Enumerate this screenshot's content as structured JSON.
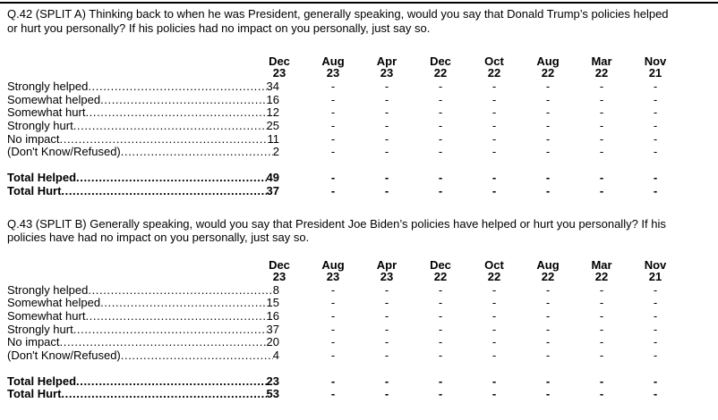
{
  "meta": {
    "background_color": "#ffffff",
    "text_color": "#000000",
    "rule_color": "#000000"
  },
  "questions": [
    {
      "id": "Q.42",
      "text": "Q.42 (SPLIT A) Thinking back to when he was President, generally speaking, would you say that Donald Trump’s policies helped\nor hurt you personally? If his policies had no impact on you personally, just say so.",
      "columns": [
        {
          "month": "Dec",
          "year": "23"
        },
        {
          "month": "Aug",
          "year": "23"
        },
        {
          "month": "Apr",
          "year": "23"
        },
        {
          "month": "Dec",
          "year": "22"
        },
        {
          "month": "Oct",
          "year": "22"
        },
        {
          "month": "Aug",
          "year": "22"
        },
        {
          "month": "Mar",
          "year": "22"
        },
        {
          "month": "Nov",
          "year": "21"
        }
      ],
      "rows": [
        {
          "label": "Strongly helped",
          "values": [
            "34",
            "-",
            "-",
            "-",
            "-",
            "-",
            "-",
            "-"
          ]
        },
        {
          "label": "Somewhat helped",
          "values": [
            "16",
            "-",
            "-",
            "-",
            "-",
            "-",
            "-",
            "-"
          ]
        },
        {
          "label": "Somewhat hurt",
          "values": [
            "12",
            "-",
            "-",
            "-",
            "-",
            "-",
            "-",
            "-"
          ]
        },
        {
          "label": "Strongly hurt",
          "values": [
            "25",
            "-",
            "-",
            "-",
            "-",
            "-",
            "-",
            "-"
          ]
        },
        {
          "label": "No impact",
          "values": [
            "11",
            "-",
            "-",
            "-",
            "-",
            "-",
            "-",
            "-"
          ]
        },
        {
          "label": "(Don't Know/Refused)",
          "values": [
            "2",
            "-",
            "-",
            "-",
            "-",
            "-",
            "-",
            "-"
          ]
        }
      ],
      "totals": [
        {
          "label": "Total Helped",
          "values": [
            "49",
            "-",
            "-",
            "-",
            "-",
            "-",
            "-",
            "-"
          ]
        },
        {
          "label": "Total Hurt",
          "values": [
            "37",
            "-",
            "-",
            "-",
            "-",
            "-",
            "-",
            "-"
          ]
        }
      ]
    },
    {
      "id": "Q.43",
      "text": "Q.43 (SPLIT B) Generally speaking, would you say that President Joe Biden’s policies have helped or hurt you personally? If his\npolicies have had no impact on you personally, just say so.",
      "columns": [
        {
          "month": "Dec",
          "year": "23"
        },
        {
          "month": "Aug",
          "year": "23"
        },
        {
          "month": "Apr",
          "year": "23"
        },
        {
          "month": "Dec",
          "year": "22"
        },
        {
          "month": "Oct",
          "year": "22"
        },
        {
          "month": "Aug",
          "year": "22"
        },
        {
          "month": "Mar",
          "year": "22"
        },
        {
          "month": "Nov",
          "year": "21"
        }
      ],
      "rows": [
        {
          "label": "Strongly helped",
          "values": [
            "8",
            "-",
            "-",
            "-",
            "-",
            "-",
            "-",
            "-"
          ]
        },
        {
          "label": "Somewhat helped",
          "values": [
            "15",
            "-",
            "-",
            "-",
            "-",
            "-",
            "-",
            "-"
          ]
        },
        {
          "label": "Somewhat hurt",
          "values": [
            "16",
            "-",
            "-",
            "-",
            "-",
            "-",
            "-",
            "-"
          ]
        },
        {
          "label": "Strongly hurt",
          "values": [
            "37",
            "-",
            "-",
            "-",
            "-",
            "-",
            "-",
            "-"
          ]
        },
        {
          "label": "No impact",
          "values": [
            "20",
            "-",
            "-",
            "-",
            "-",
            "-",
            "-",
            "-"
          ]
        },
        {
          "label": "(Don't Know/Refused)",
          "values": [
            "4",
            "-",
            "-",
            "-",
            "-",
            "-",
            "-",
            "-"
          ]
        }
      ],
      "totals": [
        {
          "label": "Total Helped",
          "values": [
            "23",
            "-",
            "-",
            "-",
            "-",
            "-",
            "-",
            "-"
          ]
        },
        {
          "label": "Total Hurt",
          "values": [
            "53",
            "-",
            "-",
            "-",
            "-",
            "-",
            "-",
            "-"
          ]
        }
      ]
    }
  ]
}
